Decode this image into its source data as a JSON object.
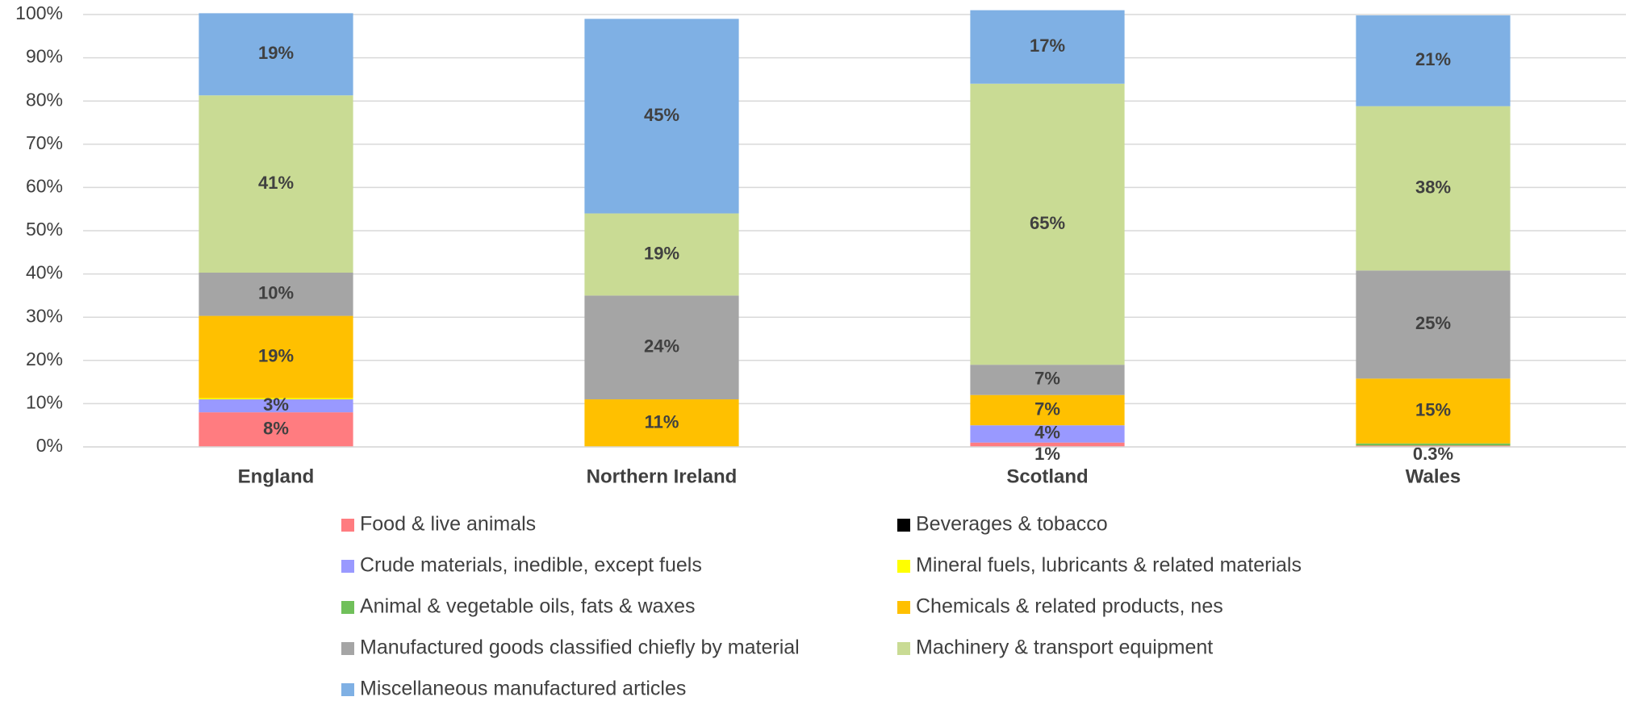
{
  "chart_data": {
    "type": "stacked_bar",
    "categories": [
      "England",
      "Northern Ireland",
      "Scotland",
      "Wales"
    ],
    "ylim": [
      0,
      100
    ],
    "yticks": [
      {
        "value": 0,
        "label": "0%"
      },
      {
        "value": 10,
        "label": "10%"
      },
      {
        "value": 20,
        "label": "20%"
      },
      {
        "value": 30,
        "label": "30%"
      },
      {
        "value": 40,
        "label": "40%"
      },
      {
        "value": 50,
        "label": "50%"
      },
      {
        "value": 60,
        "label": "60%"
      },
      {
        "value": 70,
        "label": "70%"
      },
      {
        "value": 80,
        "label": "80%"
      },
      {
        "value": 90,
        "label": "90%"
      },
      {
        "value": 100,
        "label": "100%"
      }
    ],
    "grid": true,
    "legend": "bottom",
    "series": [
      {
        "name": "Food & live animals",
        "color": "#FF7C80",
        "values": [
          8,
          0,
          1,
          0.3
        ],
        "value_labels": [
          "8%",
          null,
          "1%",
          "0.3%"
        ]
      },
      {
        "name": "Beverages & tobacco",
        "color": "#000000",
        "values": [
          0,
          0,
          0,
          0
        ],
        "value_labels": [
          null,
          null,
          null,
          null
        ]
      },
      {
        "name": "Crude materials, inedible, except fuels",
        "color": "#9999FF",
        "values": [
          3,
          0,
          4,
          0
        ],
        "value_labels": [
          "3%",
          null,
          "4%",
          null
        ]
      },
      {
        "name": "Mineral fuels, lubricants & related materials",
        "color": "#FFFF00",
        "values": [
          0.3,
          0,
          0,
          0
        ],
        "value_labels": [
          null,
          null,
          null,
          null
        ]
      },
      {
        "name": "Animal & vegetable oils, fats & waxes",
        "color": "#70C05A",
        "values": [
          0,
          0,
          0,
          0.5
        ],
        "value_labels": [
          null,
          null,
          null,
          null
        ]
      },
      {
        "name": "Chemicals & related products, nes",
        "color": "#FFC000",
        "values": [
          19,
          11,
          7,
          15
        ],
        "value_labels": [
          "19%",
          "11%",
          "7%",
          "15%"
        ]
      },
      {
        "name": "Manufactured goods classified chiefly by material",
        "color": "#A5A5A5",
        "values": [
          10,
          24,
          7,
          25
        ],
        "value_labels": [
          "10%",
          "24%",
          "7%",
          "25%"
        ]
      },
      {
        "name": "Machinery & transport equipment",
        "color": "#C9DB94",
        "values": [
          41,
          19,
          65,
          38
        ],
        "value_labels": [
          "41%",
          "19%",
          "65%",
          "38%"
        ]
      },
      {
        "name": "Miscellaneous manufactured articles",
        "color": "#7FB0E4",
        "values": [
          19,
          45,
          17,
          21
        ],
        "value_labels": [
          "19%",
          "45%",
          "17%",
          "21%"
        ]
      }
    ]
  }
}
